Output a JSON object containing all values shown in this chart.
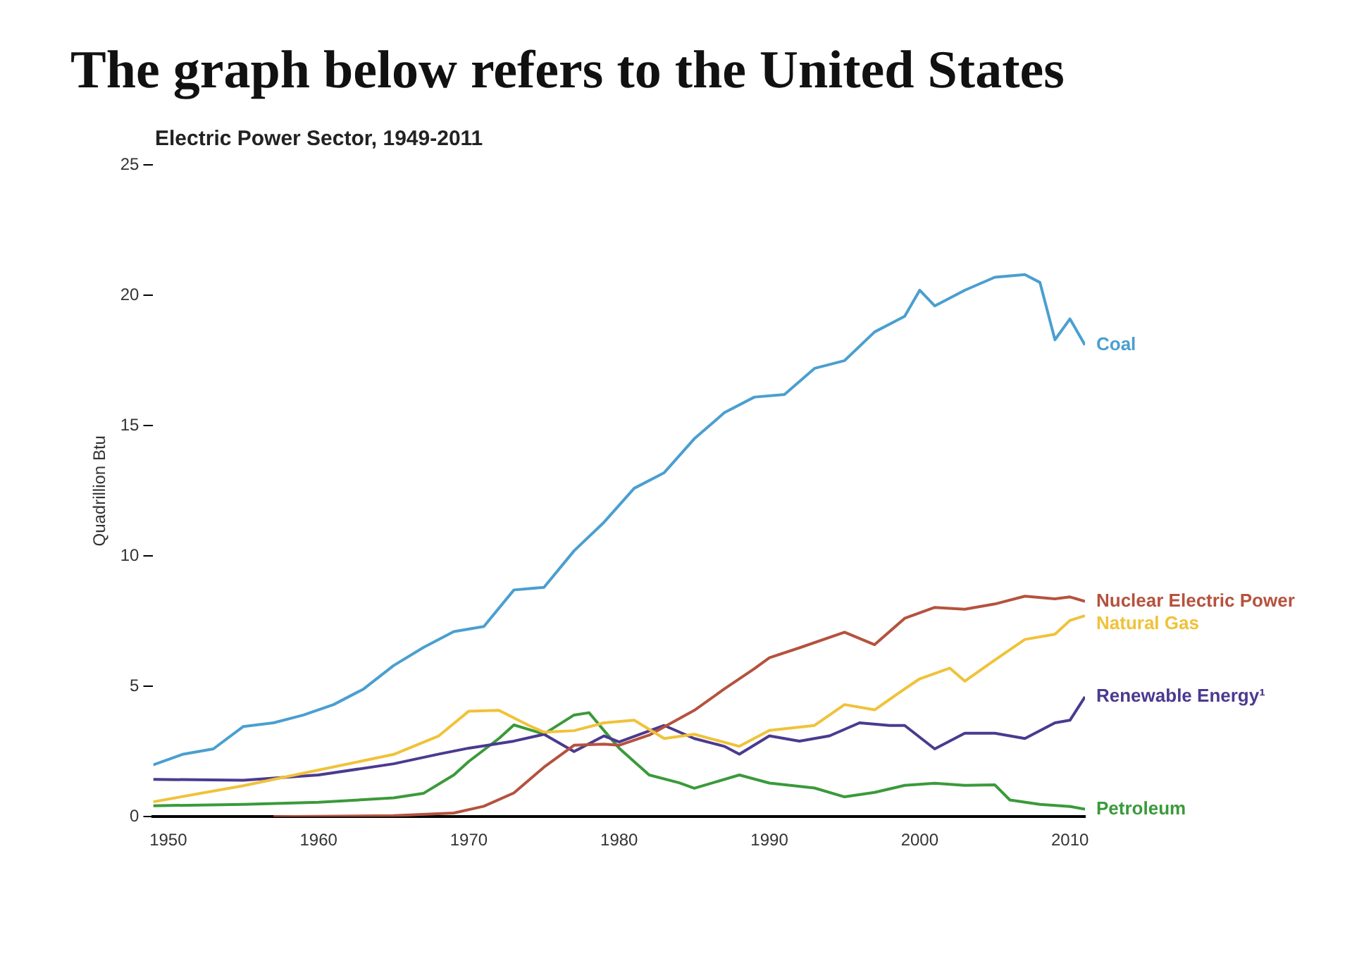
{
  "chart_data": {
    "type": "line",
    "title": "The graph below refers to the United States",
    "subtitle": "Electric Power Sector, 1949-2011",
    "ylabel": "Quadrillion Btu",
    "xlim": [
      1949,
      2011
    ],
    "xticks": [
      1950,
      1960,
      1970,
      1980,
      1990,
      2000,
      2010
    ],
    "ylim": [
      0,
      25
    ],
    "yticks": [
      0,
      5,
      10,
      15,
      20,
      25
    ],
    "grid": false,
    "legend": false,
    "marker": "none",
    "line_style": "solid",
    "series": [
      {
        "name": "Coal",
        "color": "#4a9fd0",
        "x": [
          1949,
          1951,
          1953,
          1955,
          1957,
          1959,
          1961,
          1963,
          1965,
          1967,
          1969,
          1971,
          1973,
          1975,
          1977,
          1979,
          1981,
          1983,
          1985,
          1987,
          1989,
          1991,
          1993,
          1995,
          1997,
          1999,
          2000,
          2001,
          2003,
          2005,
          2007,
          2008,
          2009,
          2010,
          2011
        ],
        "values": [
          1.99,
          2.4,
          2.6,
          3.46,
          3.6,
          3.9,
          4.3,
          4.9,
          5.8,
          6.5,
          7.1,
          7.3,
          8.7,
          8.8,
          10.2,
          11.3,
          12.6,
          13.2,
          14.5,
          15.5,
          16.1,
          16.2,
          17.2,
          17.5,
          18.6,
          19.2,
          20.2,
          19.6,
          20.2,
          20.7,
          20.8,
          20.5,
          18.3,
          19.1,
          18.1
        ]
      },
      {
        "name": "Natural Gas",
        "color": "#f0c23a",
        "x": [
          1949,
          1955,
          1960,
          1965,
          1968,
          1970,
          1972,
          1974,
          1975,
          1977,
          1979,
          1981,
          1983,
          1985,
          1988,
          1990,
          1993,
          1995,
          1997,
          1999,
          2000,
          2002,
          2003,
          2005,
          2007,
          2009,
          2010,
          2011
        ],
        "values": [
          0.57,
          1.19,
          1.79,
          2.39,
          3.1,
          4.05,
          4.08,
          3.5,
          3.24,
          3.3,
          3.6,
          3.7,
          3.0,
          3.16,
          2.7,
          3.31,
          3.5,
          4.3,
          4.1,
          4.9,
          5.29,
          5.7,
          5.2,
          6.01,
          6.8,
          7.0,
          7.53,
          7.71
        ]
      },
      {
        "name": "Nuclear Electric Power",
        "color": "#b5523e",
        "x": [
          1957,
          1965,
          1969,
          1971,
          1973,
          1975,
          1977,
          1979,
          1980,
          1982,
          1985,
          1987,
          1989,
          1990,
          1992,
          1995,
          1997,
          1999,
          2001,
          2003,
          2005,
          2007,
          2009,
          2010,
          2011
        ],
        "values": [
          0,
          0.04,
          0.14,
          0.4,
          0.91,
          1.9,
          2.74,
          2.78,
          2.74,
          3.13,
          4.08,
          4.9,
          5.68,
          6.1,
          6.48,
          7.08,
          6.6,
          7.61,
          8.03,
          7.96,
          8.16,
          8.46,
          8.36,
          8.43,
          8.26
        ]
      },
      {
        "name": "Renewable Energy¹",
        "color": "#4b3a8f",
        "x": [
          1949,
          1955,
          1960,
          1965,
          1968,
          1970,
          1973,
          1975,
          1977,
          1979,
          1980,
          1983,
          1985,
          1987,
          1988,
          1990,
          1992,
          1994,
          1996,
          1998,
          1999,
          2001,
          2003,
          2005,
          2007,
          2009,
          2010,
          2011
        ],
        "values": [
          1.43,
          1.4,
          1.6,
          2.03,
          2.4,
          2.63,
          2.9,
          3.16,
          2.5,
          3.1,
          2.87,
          3.5,
          3.0,
          2.7,
          2.4,
          3.1,
          2.9,
          3.1,
          3.6,
          3.5,
          3.5,
          2.6,
          3.2,
          3.2,
          3.0,
          3.6,
          3.7,
          4.6
        ]
      },
      {
        "name": "Petroleum",
        "color": "#3a9a3a",
        "x": [
          1949,
          1955,
          1960,
          1965,
          1967,
          1969,
          1970,
          1972,
          1973,
          1975,
          1977,
          1978,
          1979,
          1980,
          1982,
          1984,
          1985,
          1988,
          1990,
          1993,
          1995,
          1997,
          1999,
          2001,
          2003,
          2005,
          2006,
          2008,
          2010,
          2011
        ],
        "values": [
          0.42,
          0.47,
          0.55,
          0.72,
          0.9,
          1.6,
          2.12,
          3.0,
          3.52,
          3.17,
          3.9,
          3.99,
          3.3,
          2.63,
          1.6,
          1.3,
          1.09,
          1.6,
          1.29,
          1.1,
          0.76,
          0.93,
          1.2,
          1.28,
          1.2,
          1.22,
          0.64,
          0.47,
          0.39,
          0.29
        ]
      }
    ]
  }
}
